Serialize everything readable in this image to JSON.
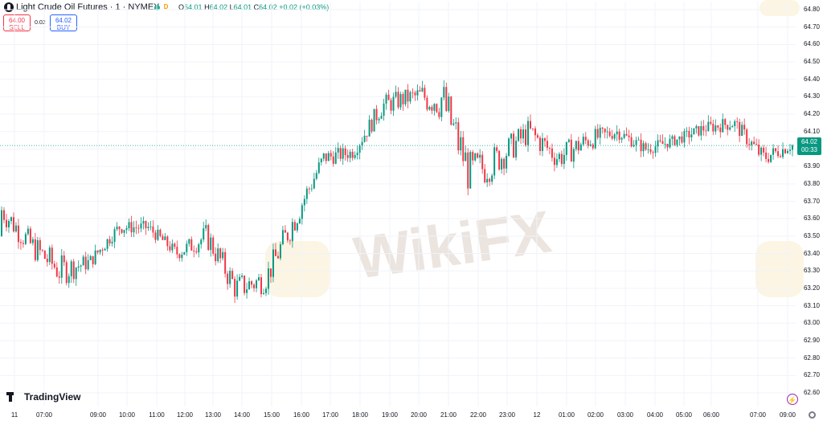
{
  "header": {
    "title": "Light Crude Oil Futures · 1 · NYMEX",
    "interval_badge": "D",
    "ohlc": {
      "o_label": "O",
      "o": "64.01",
      "h_label": "H",
      "h": "64.02",
      "l_label": "L",
      "l": "64.01",
      "c_label": "C",
      "c": "64.02",
      "change": "+0.02 (+0.03%)"
    }
  },
  "trade": {
    "sell_price": "64.00",
    "sell_label": "SELL",
    "spread": "0.02",
    "buy_price": "64.02",
    "buy_label": "BUY"
  },
  "price_axis": {
    "ticks": [
      "64.80",
      "64.70",
      "64.60",
      "64.50",
      "64.40",
      "64.30",
      "64.20",
      "64.10",
      "64.00",
      "63.90",
      "63.80",
      "63.70",
      "63.60",
      "63.50",
      "63.40",
      "63.30",
      "63.20",
      "63.10",
      "63.00",
      "62.90",
      "62.80",
      "62.70",
      "62.60"
    ],
    "current_price": "64.02",
    "countdown": "00:33"
  },
  "time_axis": {
    "labels": [
      "11",
      "07:00",
      "09:00",
      "10:00",
      "11:00",
      "12:00",
      "13:00",
      "14:00",
      "15:00",
      "16:00",
      "17:00",
      "18:00",
      "19:00",
      "20:00",
      "21:00",
      "22:00",
      "23:00",
      "12",
      "01:00",
      "02:00",
      "03:00",
      "04:00",
      "05:00",
      "06:00",
      "07:00",
      "09:00",
      "10:00"
    ]
  },
  "branding": {
    "logo_text": "TradingView",
    "watermark": "WikiFX"
  },
  "colors": {
    "up": "#089981",
    "down": "#f23645",
    "grid": "#f0f3fa",
    "text": "#131722",
    "accent": "#2962ff"
  },
  "chart_data": {
    "type": "candlestick",
    "symbol": "Light Crude Oil Futures",
    "ylim": [
      62.6,
      64.8
    ],
    "last_price": 64.02,
    "x": [
      "07:00",
      "08:00",
      "09:00",
      "10:00",
      "11:00",
      "12:00",
      "13:00",
      "14:00",
      "15:00",
      "16:00",
      "17:00",
      "18:00",
      "19:00",
      "20:00",
      "21:00",
      "22:00",
      "23:00",
      "00:00",
      "01:00",
      "02:00",
      "03:00",
      "04:00",
      "05:00",
      "06:00",
      "07:00",
      "08:00",
      "09:00",
      "10:00"
    ],
    "close": [
      63.65,
      63.45,
      63.3,
      63.35,
      63.55,
      63.55,
      63.4,
      63.5,
      63.2,
      63.25,
      63.6,
      63.95,
      63.98,
      64.25,
      64.3,
      64.3,
      63.85,
      63.95,
      64.1,
      63.95,
      64.05,
      64.1,
      64.0,
      64.05,
      64.12,
      64.15,
      63.95,
      64.02
    ],
    "high": [
      63.72,
      63.6,
      63.4,
      63.45,
      63.6,
      63.6,
      63.5,
      63.7,
      63.45,
      63.4,
      63.75,
      64.0,
      64.05,
      64.35,
      64.42,
      64.45,
      64.2,
      64.1,
      64.2,
      64.15,
      64.15,
      64.15,
      64.1,
      64.1,
      64.2,
      64.22,
      64.1,
      64.06
    ],
    "low": [
      63.4,
      63.3,
      63.02,
      63.28,
      63.45,
      63.45,
      63.35,
      63.4,
      63.12,
      63.1,
      63.4,
      63.8,
      63.9,
      64.1,
      64.2,
      63.85,
      63.65,
      63.75,
      63.9,
      63.85,
      63.9,
      64.0,
      63.95,
      63.98,
      64.05,
      64.05,
      63.88,
      63.95
    ]
  }
}
